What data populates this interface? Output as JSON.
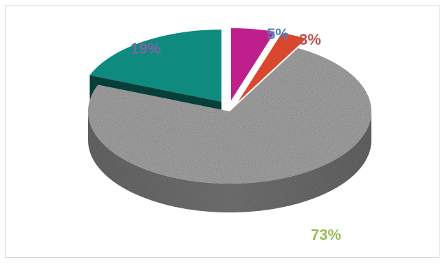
{
  "chart_data": {
    "type": "pie",
    "categories": [
      "",
      "",
      "",
      ""
    ],
    "values": [
      73,
      19,
      5,
      3
    ],
    "labels": [
      "73%",
      "19%",
      "5%",
      "3%"
    ],
    "title": "",
    "legend": false,
    "style": "3d-exploded",
    "series_colors": [
      "#a8a8a8",
      "#0e8a7f",
      "#bf1f8c",
      "#d9472c"
    ],
    "label_colors": [
      "#9bbb59",
      "#8064a2",
      "#4f81bd",
      "#c0504d"
    ]
  }
}
